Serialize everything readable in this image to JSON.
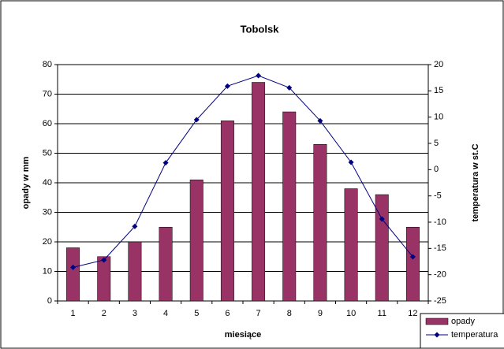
{
  "chart_data": {
    "type": "bar_line",
    "title": "Tobolsk",
    "x_label": "miesiące",
    "y_label": "opady w mm",
    "y2_label": "temperatura w st.C",
    "categories": [
      "1",
      "2",
      "3",
      "4",
      "5",
      "6",
      "7",
      "8",
      "9",
      "10",
      "11",
      "12"
    ],
    "series": [
      {
        "name": "opady",
        "type": "bar",
        "color": "#993366",
        "values": [
          18,
          15,
          20,
          25,
          41,
          61,
          74,
          64,
          53,
          38,
          36,
          25
        ]
      },
      {
        "name": "temperatura",
        "type": "line",
        "axis": "y2",
        "color": "#000080",
        "values": [
          -18.6,
          -17.2,
          -10.8,
          1.3,
          9.5,
          15.9,
          17.9,
          15.6,
          9.3,
          1.4,
          -9.4,
          -16.6
        ]
      }
    ],
    "ylim": [
      0,
      80
    ],
    "yticks": [
      0,
      10,
      20,
      30,
      40,
      50,
      60,
      70,
      80
    ],
    "y2lim": [
      -25,
      20
    ],
    "y2ticks": [
      -25,
      -20,
      -15,
      -10,
      -5,
      0,
      5,
      10,
      15,
      20
    ],
    "grid": true,
    "legend": "bottom-right"
  }
}
